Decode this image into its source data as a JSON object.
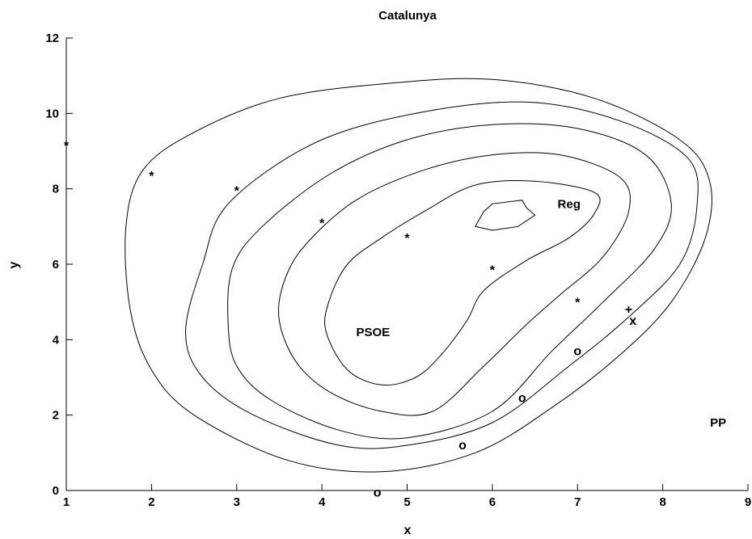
{
  "chart_data": {
    "type": "contour",
    "title": "Catalunya",
    "xlabel": "x",
    "ylabel": "y",
    "xlim": [
      1,
      9
    ],
    "ylim": [
      0,
      12
    ],
    "xticks": [
      "1",
      "2",
      "3",
      "4",
      "5",
      "6",
      "7",
      "8",
      "9"
    ],
    "yticks": [
      "0",
      "2",
      "4",
      "6",
      "8",
      "10",
      "12"
    ],
    "grid": false,
    "annotations": [
      {
        "text": "Reg",
        "x": 6.9,
        "y": 7.6
      },
      {
        "text": "PSOE",
        "x": 4.6,
        "y": 4.2
      },
      {
        "text": "PP",
        "x": 8.65,
        "y": 1.8
      }
    ],
    "series": [
      {
        "marker": "*",
        "points": [
          [
            1,
            9.2
          ],
          [
            2,
            8.4
          ],
          [
            3,
            8.0
          ],
          [
            4,
            7.15
          ],
          [
            5,
            6.75
          ],
          [
            6,
            5.9
          ],
          [
            7,
            5.05
          ]
        ]
      },
      {
        "marker": "o",
        "points": [
          [
            4.65,
            -0.05
          ],
          [
            5.65,
            1.2
          ],
          [
            6.35,
            2.45
          ],
          [
            7.0,
            3.7
          ]
        ]
      },
      {
        "marker": "+",
        "points": [
          [
            7.6,
            4.8
          ]
        ]
      },
      {
        "marker": "x",
        "points": [
          [
            7.65,
            4.5
          ]
        ]
      }
    ],
    "contours": [
      [
        [
          6.4,
          7.5
        ],
        [
          6.5,
          7.3
        ],
        [
          6.3,
          7.0
        ],
        [
          6.0,
          6.9
        ],
        [
          5.8,
          7.0
        ],
        [
          5.9,
          7.4
        ],
        [
          6.0,
          7.6
        ],
        [
          6.35,
          7.7
        ],
        [
          6.4,
          7.5
        ]
      ],
      [
        [
          4.05,
          4.2
        ],
        [
          4.08,
          5.0
        ],
        [
          4.3,
          6.0
        ],
        [
          4.7,
          6.7
        ],
        [
          5.2,
          7.4
        ],
        [
          5.8,
          8.1
        ],
        [
          6.5,
          8.2
        ],
        [
          7.2,
          7.9
        ],
        [
          7.2,
          7.35
        ],
        [
          6.9,
          6.7
        ],
        [
          6.4,
          6.1
        ],
        [
          5.9,
          5.3
        ],
        [
          5.7,
          4.5
        ],
        [
          5.4,
          3.6
        ],
        [
          5.1,
          3.0
        ],
        [
          4.7,
          2.8
        ],
        [
          4.3,
          3.2
        ],
        [
          4.05,
          4.2
        ]
      ],
      [
        [
          3.5,
          4.5
        ],
        [
          3.55,
          5.5
        ],
        [
          3.8,
          6.5
        ],
        [
          4.4,
          7.7
        ],
        [
          5.2,
          8.5
        ],
        [
          6.0,
          8.9
        ],
        [
          6.8,
          8.9
        ],
        [
          7.5,
          8.3
        ],
        [
          7.6,
          7.4
        ],
        [
          7.3,
          6.2
        ],
        [
          6.8,
          5.2
        ],
        [
          6.4,
          4.4
        ],
        [
          5.9,
          3.3
        ],
        [
          5.3,
          2.1
        ],
        [
          4.7,
          2.1
        ],
        [
          4.1,
          2.6
        ],
        [
          3.7,
          3.4
        ],
        [
          3.5,
          4.5
        ]
      ],
      [
        [
          2.9,
          4.4
        ],
        [
          2.95,
          5.9
        ],
        [
          3.3,
          7.0
        ],
        [
          4.1,
          8.4
        ],
        [
          5.0,
          9.3
        ],
        [
          6.0,
          9.7
        ],
        [
          7.0,
          9.6
        ],
        [
          7.8,
          8.9
        ],
        [
          8.1,
          7.6
        ],
        [
          7.9,
          6.4
        ],
        [
          7.3,
          5.0
        ],
        [
          6.7,
          3.7
        ],
        [
          6.0,
          2.1
        ],
        [
          5.0,
          1.4
        ],
        [
          4.2,
          1.6
        ],
        [
          3.4,
          2.4
        ],
        [
          3.0,
          3.3
        ],
        [
          2.9,
          4.4
        ]
      ],
      [
        [
          2.4,
          4.2
        ],
        [
          2.6,
          6.0
        ],
        [
          2.9,
          7.6
        ],
        [
          3.9,
          9.2
        ],
        [
          5.1,
          10.0
        ],
        [
          6.4,
          10.3
        ],
        [
          7.5,
          9.8
        ],
        [
          8.3,
          8.8
        ],
        [
          8.4,
          7.5
        ],
        [
          8.2,
          6.0
        ],
        [
          7.6,
          4.6
        ],
        [
          6.9,
          3.3
        ],
        [
          6.0,
          1.8
        ],
        [
          5.0,
          1.2
        ],
        [
          4.2,
          1.2
        ],
        [
          3.2,
          2.0
        ],
        [
          2.6,
          3.0
        ],
        [
          2.4,
          4.2
        ]
      ],
      [
        [
          1.7,
          7.0
        ],
        [
          1.9,
          8.5
        ],
        [
          2.5,
          9.5
        ],
        [
          3.5,
          10.4
        ],
        [
          4.8,
          10.8
        ],
        [
          6.0,
          10.9
        ],
        [
          7.2,
          10.4
        ],
        [
          8.2,
          9.3
        ],
        [
          8.55,
          8.2
        ],
        [
          8.5,
          6.7
        ],
        [
          8.1,
          5.0
        ],
        [
          7.5,
          3.6
        ],
        [
          6.7,
          2.2
        ],
        [
          5.8,
          1.0
        ],
        [
          4.7,
          0.5
        ],
        [
          3.6,
          0.8
        ],
        [
          2.5,
          2.0
        ],
        [
          2.0,
          3.2
        ],
        [
          1.75,
          4.8
        ],
        [
          1.7,
          7.0
        ]
      ]
    ]
  }
}
